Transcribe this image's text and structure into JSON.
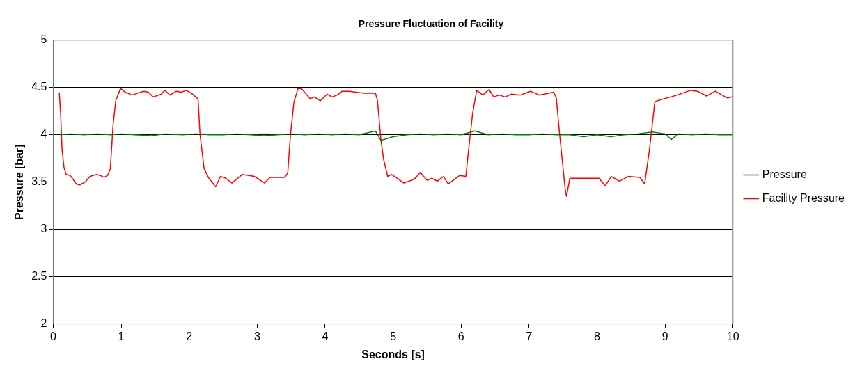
{
  "chart_data": {
    "type": "line",
    "title": "Pressure Fluctuation of Facility",
    "xlabel": "Seconds [s]",
    "ylabel": "Pressure [bar]",
    "xlim": [
      0,
      10
    ],
    "ylim": [
      2,
      5
    ],
    "xticks": [
      0,
      1,
      2,
      3,
      4,
      5,
      6,
      7,
      8,
      9,
      10
    ],
    "yticks": [
      2,
      2.5,
      3,
      3.5,
      4,
      4.5,
      5
    ],
    "grid": "y",
    "legend": "right",
    "series": [
      {
        "name": "Pressure",
        "color": "#008000",
        "x": [
          0.1,
          0.25,
          0.45,
          0.65,
          0.85,
          1.0,
          1.2,
          1.45,
          1.65,
          1.9,
          2.1,
          2.3,
          2.5,
          2.7,
          2.9,
          3.1,
          3.3,
          3.5,
          3.7,
          3.9,
          4.1,
          4.3,
          4.5,
          4.74,
          4.82,
          5.0,
          5.2,
          5.4,
          5.6,
          5.8,
          6.0,
          6.2,
          6.4,
          6.6,
          6.8,
          7.0,
          7.2,
          7.4,
          7.6,
          7.8,
          8.0,
          8.2,
          8.4,
          8.6,
          8.81,
          9.0,
          9.09,
          9.2,
          9.4,
          9.6,
          9.8,
          10.0
        ],
        "values": [
          4.0,
          4.01,
          4.0,
          4.01,
          4.0,
          4.01,
          4.0,
          3.99,
          4.01,
          4.0,
          4.01,
          4.0,
          4.0,
          4.01,
          4.0,
          3.99,
          4.0,
          4.01,
          4.0,
          4.01,
          4.0,
          4.01,
          4.0,
          4.04,
          3.94,
          3.98,
          4.0,
          4.01,
          4.0,
          4.01,
          4.0,
          4.04,
          4.0,
          4.01,
          4.0,
          4.0,
          4.01,
          4.0,
          4.0,
          3.98,
          4.0,
          3.98,
          4.0,
          4.01,
          4.03,
          4.01,
          3.95,
          4.01,
          4.0,
          4.01,
          4.0,
          4.0
        ]
      },
      {
        "name": "Facility Pressure",
        "color": "#ff0000",
        "x": [
          0.09,
          0.11,
          0.13,
          0.16,
          0.19,
          0.25,
          0.34,
          0.39,
          0.47,
          0.54,
          0.64,
          0.69,
          0.75,
          0.8,
          0.84,
          0.88,
          0.92,
          0.99,
          1.06,
          1.16,
          1.33,
          1.4,
          1.47,
          1.59,
          1.64,
          1.72,
          1.81,
          1.88,
          1.96,
          2.05,
          2.13,
          2.16,
          2.22,
          2.29,
          2.39,
          2.46,
          2.54,
          2.63,
          2.78,
          2.96,
          3.11,
          3.19,
          3.41,
          3.45,
          3.49,
          3.54,
          3.6,
          3.65,
          3.78,
          3.84,
          3.93,
          4.03,
          4.1,
          4.18,
          4.25,
          4.36,
          4.45,
          4.58,
          4.74,
          4.77,
          4.82,
          4.86,
          4.92,
          4.98,
          5.16,
          5.31,
          5.4,
          5.5,
          5.57,
          5.65,
          5.74,
          5.81,
          5.98,
          6.07,
          6.11,
          6.17,
          6.23,
          6.32,
          6.41,
          6.48,
          6.56,
          6.65,
          6.74,
          6.87,
          7.02,
          7.15,
          7.36,
          7.4,
          7.45,
          7.53,
          7.55,
          7.6,
          7.69,
          8.03,
          8.12,
          8.21,
          8.33,
          8.46,
          8.63,
          8.7,
          8.77,
          8.85,
          8.93,
          9.18,
          9.37,
          9.48,
          9.61,
          9.74,
          9.91,
          9.99
        ],
        "values": [
          4.44,
          4.21,
          3.84,
          3.65,
          3.58,
          3.57,
          3.48,
          3.47,
          3.5,
          3.56,
          3.58,
          3.57,
          3.55,
          3.57,
          3.64,
          4.1,
          4.36,
          4.49,
          4.45,
          4.42,
          4.46,
          4.45,
          4.4,
          4.43,
          4.47,
          4.42,
          4.46,
          4.45,
          4.47,
          4.43,
          4.38,
          4.0,
          3.64,
          3.54,
          3.45,
          3.56,
          3.54,
          3.49,
          3.58,
          3.56,
          3.49,
          3.55,
          3.55,
          3.6,
          4.0,
          4.34,
          4.49,
          4.49,
          4.38,
          4.4,
          4.36,
          4.43,
          4.4,
          4.42,
          4.46,
          4.46,
          4.45,
          4.44,
          4.44,
          4.36,
          3.95,
          3.74,
          3.56,
          3.58,
          3.49,
          3.53,
          3.6,
          3.52,
          3.54,
          3.51,
          3.56,
          3.48,
          3.57,
          3.56,
          3.84,
          4.23,
          4.47,
          4.42,
          4.48,
          4.4,
          4.42,
          4.4,
          4.43,
          4.42,
          4.46,
          4.42,
          4.45,
          4.39,
          4.0,
          3.43,
          3.35,
          3.54,
          3.54,
          3.54,
          3.46,
          3.56,
          3.51,
          3.56,
          3.55,
          3.48,
          3.84,
          4.35,
          4.37,
          4.42,
          4.47,
          4.46,
          4.41,
          4.46,
          4.39,
          4.4
        ]
      }
    ]
  }
}
